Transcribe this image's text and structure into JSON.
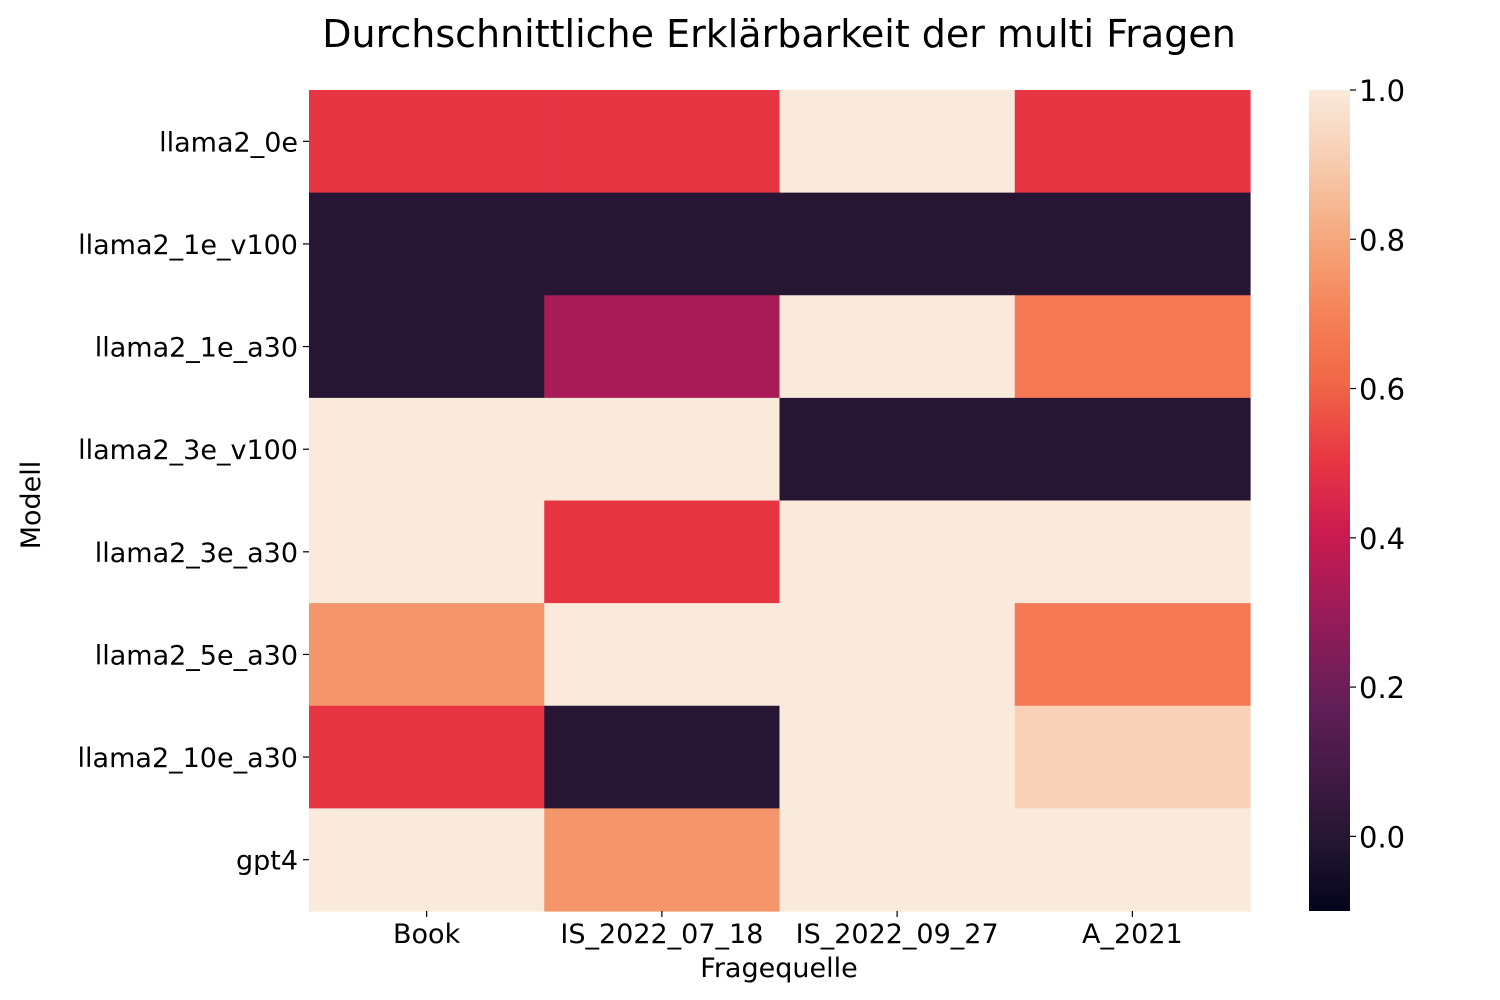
{
  "chart_data": {
    "type": "heatmap",
    "title": "Durchschnittliche Erklärbarkeit der multi Fragen",
    "xlabel": "Fragequelle",
    "ylabel": "Modell",
    "x_categories": [
      "Book",
      "IS_2022_07_18",
      "IS_2022_09_27",
      "A_2021"
    ],
    "y_categories": [
      "llama2_0e",
      "llama2_1e_v100",
      "llama2_1e_a30",
      "llama2_3e_v100",
      "llama2_3e_a30",
      "llama2_5e_a30",
      "llama2_10e_a30",
      "gpt4"
    ],
    "values": [
      [
        0.5,
        0.5,
        1.0,
        0.5
      ],
      [
        0.0,
        0.0,
        0.0,
        0.0
      ],
      [
        0.0,
        0.33,
        1.0,
        0.67
      ],
      [
        1.0,
        1.0,
        0.0,
        0.0
      ],
      [
        1.0,
        0.5,
        1.0,
        1.0
      ],
      [
        0.75,
        1.0,
        1.0,
        0.67
      ],
      [
        0.5,
        0.0,
        1.0,
        0.92
      ],
      [
        1.0,
        0.75,
        1.0,
        1.0
      ]
    ],
    "colorbar": {
      "vmin": -0.1,
      "vmax": 1.0,
      "ticks": [
        0.0,
        0.2,
        0.4,
        0.6,
        0.8,
        1.0
      ],
      "tick_labels": [
        "0.0",
        "0.2",
        "0.4",
        "0.6",
        "0.8",
        "1.0"
      ],
      "colormap": "rocket"
    }
  }
}
